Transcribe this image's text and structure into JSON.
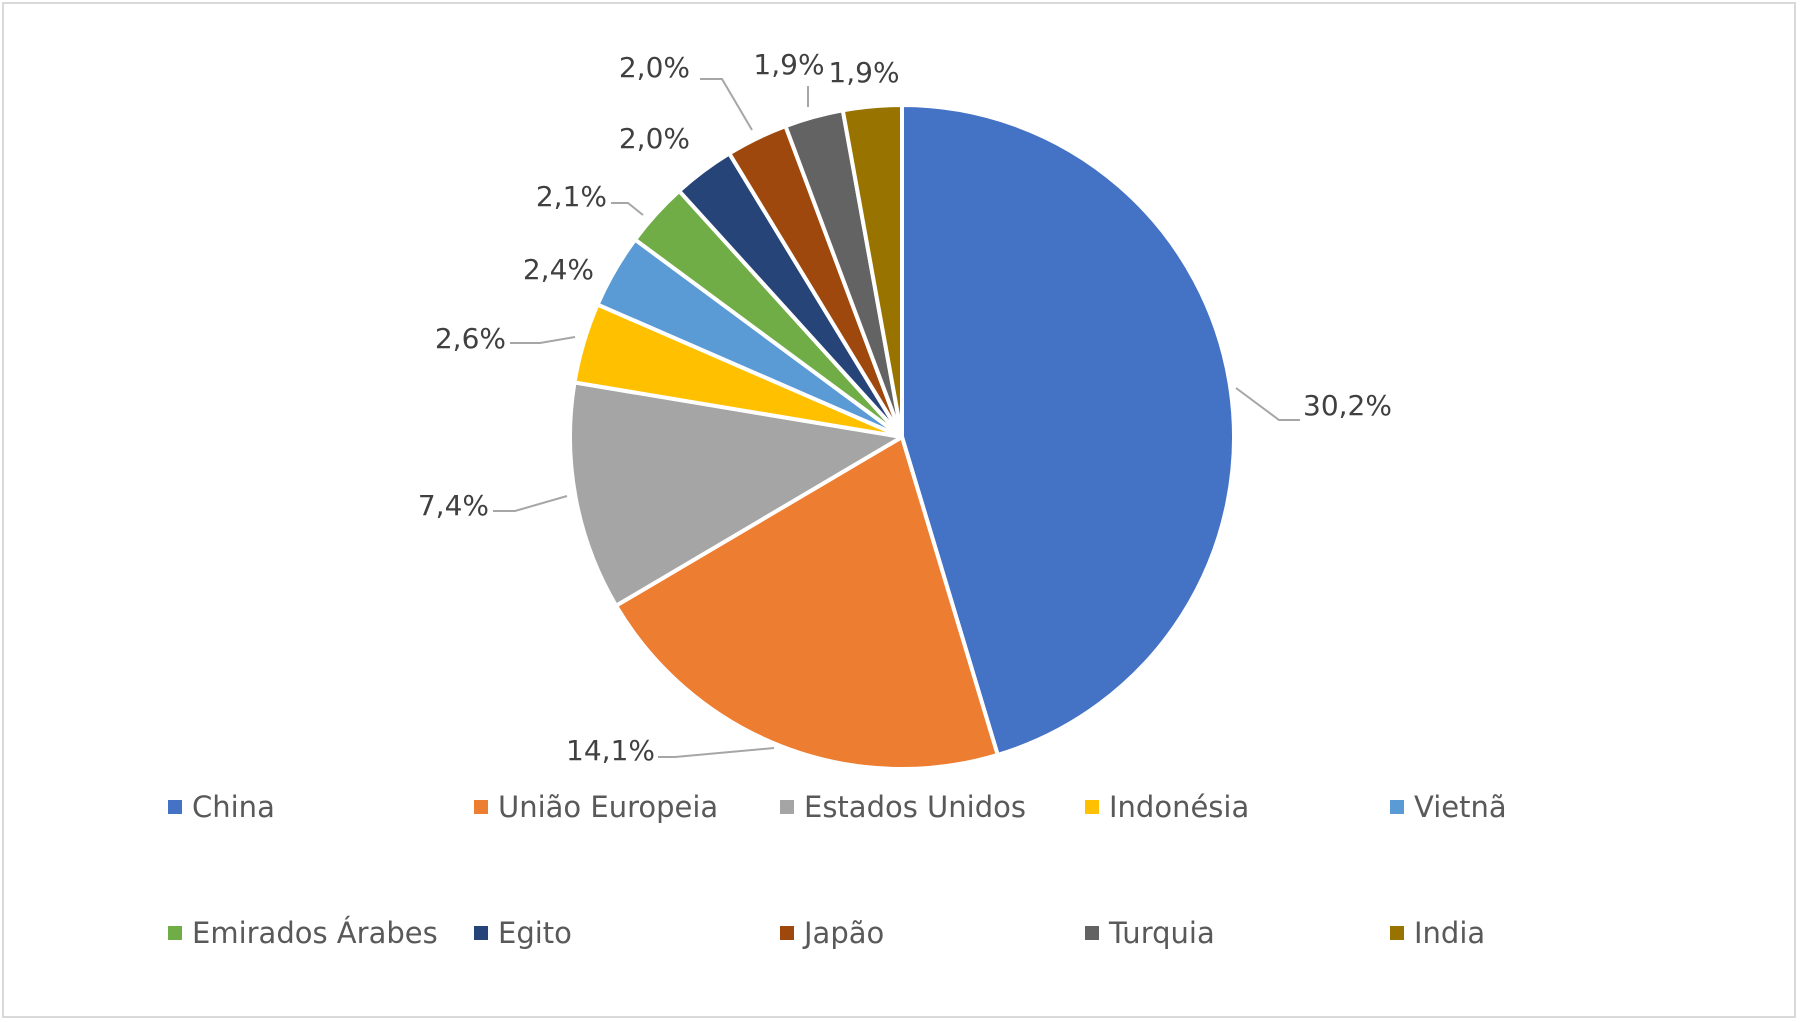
{
  "chart_data": {
    "type": "pie",
    "title": "",
    "slices": [
      {
        "name": "China",
        "label": "30,2%",
        "color": "#4472C4"
      },
      {
        "name": "União Europeia",
        "label": "14,1%",
        "color": "#ED7D31"
      },
      {
        "name": "Estados Unidos",
        "label": "7,4%",
        "color": "#A5A5A5"
      },
      {
        "name": "Indonésia",
        "label": "2,6%",
        "color": "#FFC000"
      },
      {
        "name": "Vietnã",
        "label": "2,4%",
        "color": "#5B9BD5"
      },
      {
        "name": "Emirados Árabes",
        "label": "2,1%",
        "color": "#70AD47"
      },
      {
        "name": "Egito",
        "label": "2,0%",
        "color": "#264478"
      },
      {
        "name": "Japão",
        "label": "2,0%",
        "color": "#9E480E"
      },
      {
        "name": "Turquia",
        "label": "1,9%",
        "color": "#636363"
      },
      {
        "name": "India",
        "label": "1,9%",
        "color": "#997300"
      }
    ],
    "legend_position": "bottom"
  }
}
